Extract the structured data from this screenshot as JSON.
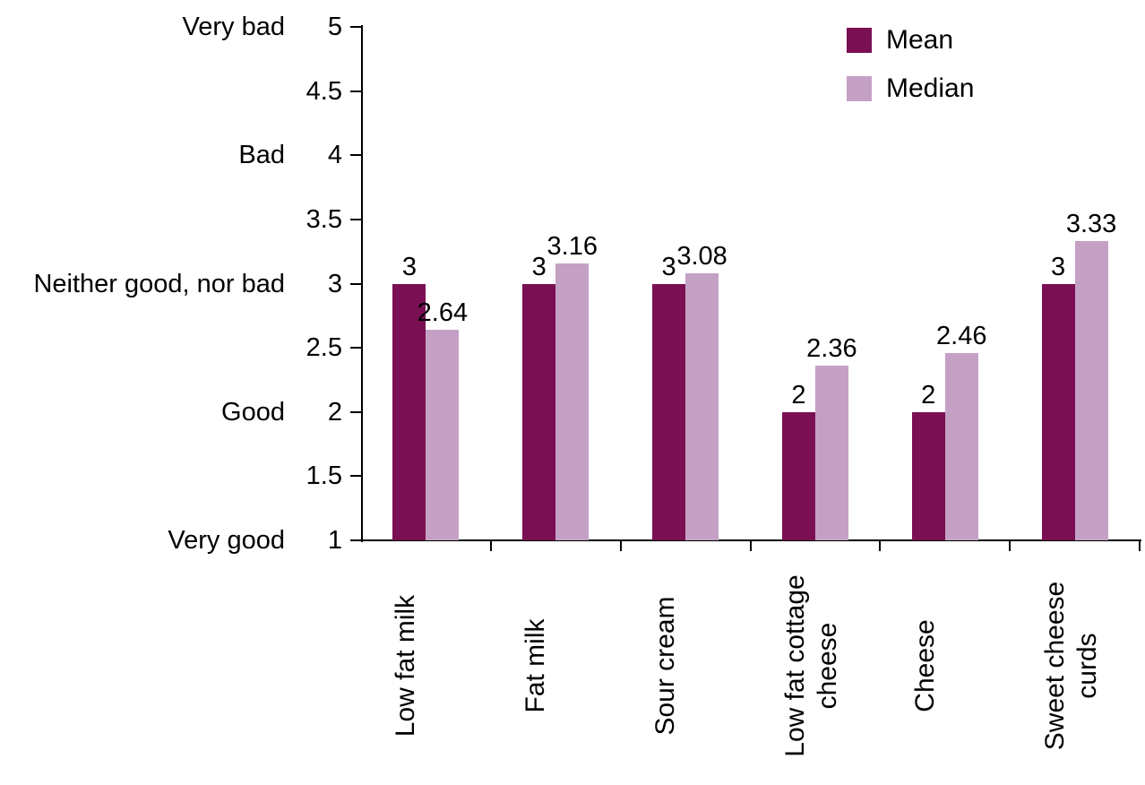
{
  "chart_data": {
    "type": "bar",
    "title": "",
    "categories": [
      "Low fat milk",
      "Fat milk",
      "Sour cream",
      "Low fat cottage cheese",
      "Cheese",
      "Sweet cheese curds"
    ],
    "series": [
      {
        "name": "Mean",
        "color": "#7a1053",
        "values": [
          3,
          3,
          3,
          2,
          2,
          3
        ],
        "labels": [
          "3",
          "3",
          "3",
          "2",
          "2",
          "3"
        ]
      },
      {
        "name": "Median",
        "color": "#c5a0c5",
        "values": [
          2.64,
          3.16,
          3.08,
          2.36,
          2.46,
          3.33
        ],
        "labels": [
          "2.64",
          "3.16",
          "3.08",
          "2.36",
          "2.46",
          "3.33"
        ]
      }
    ],
    "y_axis": {
      "min": 1,
      "max": 5,
      "step": 0.5,
      "tick_labels": [
        "1",
        "1.5",
        "2",
        "2.5",
        "3",
        "3.5",
        "4",
        "4.5",
        "5"
      ],
      "qualitative_labels": [
        {
          "value": 5,
          "label": "Very bad"
        },
        {
          "value": 4,
          "label": "Bad"
        },
        {
          "value": 3,
          "label": "Neither good, nor bad"
        },
        {
          "value": 2,
          "label": "Good"
        },
        {
          "value": 1,
          "label": "Very good"
        }
      ]
    },
    "xlabel": "",
    "ylabel": "",
    "grid": false,
    "legend": {
      "position": "top-right",
      "entries": [
        "Mean",
        "Median"
      ]
    }
  }
}
